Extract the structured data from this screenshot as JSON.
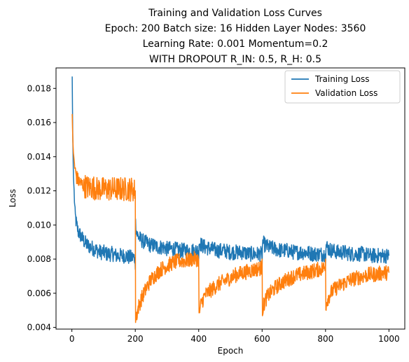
{
  "chart_data": {
    "type": "line",
    "title_lines": [
      "Training and Validation Loss Curves",
      "Epoch: 200 Batch size: 16 Hidden Layer Nodes: 3560",
      "Learning Rate: 0.001   Momentum=0.2",
      "WITH DROPOUT   R_IN: 0.5, R_H: 0.5"
    ],
    "xlabel": "Epoch",
    "ylabel": "Loss",
    "xlim": [
      -50,
      1050
    ],
    "ylim": [
      0.0039,
      0.0192
    ],
    "xticks": [
      0,
      200,
      400,
      600,
      800,
      1000
    ],
    "yticks": [
      0.004,
      0.006,
      0.008,
      0.01,
      0.012,
      0.014,
      0.016,
      0.018
    ],
    "ytick_labels": [
      "0.004",
      "0.006",
      "0.008",
      "0.010",
      "0.012",
      "0.014",
      "0.016",
      "0.018"
    ],
    "grid": false,
    "legend_position": "top-right",
    "series": [
      {
        "name": "Training Loss",
        "color": "#1f77b4",
        "x": [
          1,
          3,
          5,
          8,
          10,
          15,
          20,
          30,
          40,
          50,
          60,
          70,
          80,
          90,
          100,
          110,
          120,
          130,
          140,
          150,
          160,
          170,
          180,
          190,
          199,
          200,
          201,
          205,
          210,
          220,
          230,
          240,
          250,
          260,
          270,
          280,
          290,
          300,
          320,
          340,
          360,
          380,
          399,
          400,
          401,
          410,
          420,
          440,
          460,
          480,
          500,
          520,
          540,
          560,
          580,
          599,
          600,
          601,
          610,
          620,
          640,
          660,
          680,
          700,
          720,
          740,
          760,
          780,
          799,
          800,
          801,
          810,
          820,
          840,
          860,
          880,
          900,
          920,
          940,
          960,
          980,
          1000
        ],
        "y": [
          0.0187,
          0.015,
          0.0128,
          0.0115,
          0.0106,
          0.01,
          0.0096,
          0.0093,
          0.009,
          0.0088,
          0.0087,
          0.0086,
          0.0085,
          0.0084,
          0.0084,
          0.0083,
          0.0083,
          0.0083,
          0.0082,
          0.0082,
          0.0082,
          0.0082,
          0.0081,
          0.0081,
          0.0081,
          0.0074,
          0.0101,
          0.0095,
          0.0093,
          0.0091,
          0.009,
          0.0089,
          0.0088,
          0.0088,
          0.0087,
          0.0087,
          0.0087,
          0.0086,
          0.0086,
          0.0085,
          0.0085,
          0.0085,
          0.0085,
          0.0079,
          0.009,
          0.0088,
          0.0087,
          0.0086,
          0.0085,
          0.0085,
          0.0084,
          0.0084,
          0.0084,
          0.0083,
          0.0083,
          0.0083,
          0.0077,
          0.009,
          0.0088,
          0.0087,
          0.0086,
          0.0085,
          0.0085,
          0.0084,
          0.0084,
          0.0084,
          0.0083,
          0.0083,
          0.0083,
          0.0076,
          0.0088,
          0.0086,
          0.0085,
          0.0084,
          0.0084,
          0.0083,
          0.0083,
          0.0083,
          0.0082,
          0.0082,
          0.0082,
          0.0082
        ],
        "noise": 0.00045
      },
      {
        "name": "Validation Loss",
        "color": "#ff7f0e",
        "x": [
          1,
          3,
          5,
          8,
          10,
          15,
          20,
          30,
          40,
          50,
          60,
          70,
          80,
          90,
          100,
          110,
          120,
          130,
          140,
          150,
          160,
          170,
          180,
          190,
          199,
          200,
          201,
          205,
          210,
          220,
          230,
          240,
          250,
          260,
          270,
          280,
          290,
          300,
          320,
          340,
          360,
          380,
          399,
          400,
          401,
          405,
          410,
          420,
          440,
          460,
          480,
          500,
          520,
          540,
          560,
          580,
          599,
          600,
          601,
          605,
          610,
          620,
          640,
          660,
          680,
          700,
          720,
          740,
          760,
          780,
          799,
          800,
          801,
          805,
          810,
          820,
          840,
          860,
          880,
          900,
          920,
          940,
          960,
          980,
          1000
        ],
        "y": [
          0.0165,
          0.015,
          0.0142,
          0.0136,
          0.0132,
          0.0128,
          0.0126,
          0.0124,
          0.0123,
          0.0122,
          0.0122,
          0.0122,
          0.0121,
          0.0121,
          0.0121,
          0.0121,
          0.0121,
          0.0121,
          0.0121,
          0.0121,
          0.0121,
          0.0121,
          0.0121,
          0.0121,
          0.012,
          0.012,
          0.0045,
          0.0048,
          0.0052,
          0.0057,
          0.0061,
          0.0065,
          0.0068,
          0.007,
          0.0072,
          0.0074,
          0.0075,
          0.0076,
          0.0078,
          0.0079,
          0.0079,
          0.008,
          0.008,
          0.008,
          0.0047,
          0.0052,
          0.0055,
          0.0059,
          0.0062,
          0.0065,
          0.0067,
          0.0069,
          0.0071,
          0.0072,
          0.0073,
          0.0074,
          0.0075,
          0.008,
          0.005,
          0.0053,
          0.0056,
          0.0059,
          0.0063,
          0.0066,
          0.0068,
          0.007,
          0.0071,
          0.0072,
          0.0073,
          0.0074,
          0.0075,
          0.008,
          0.0053,
          0.0056,
          0.0058,
          0.0061,
          0.0064,
          0.0066,
          0.0068,
          0.0069,
          0.007,
          0.0071,
          0.0071,
          0.0072,
          0.0072
        ],
        "noise": 0.00045
      }
    ]
  }
}
